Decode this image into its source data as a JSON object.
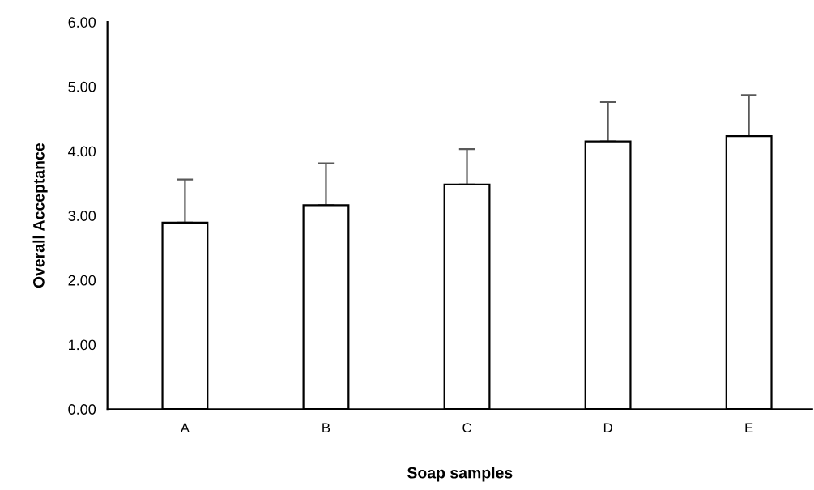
{
  "chart_data": {
    "type": "bar",
    "xlabel": "Soap samples",
    "ylabel": "Overall Acceptance",
    "categories": [
      "A",
      "B",
      "C",
      "D",
      "E"
    ],
    "series": [
      {
        "color": "#ffffff",
        "values": [
          2.89,
          3.16,
          3.48,
          4.15,
          4.23
        ],
        "errors": [
          [
            2.89,
            3.56
          ],
          [
            3.16,
            3.81
          ],
          [
            3.48,
            4.03
          ],
          [
            4.15,
            4.76
          ],
          [
            4.23,
            4.87
          ]
        ]
      }
    ],
    "ylim": [
      0,
      6
    ],
    "yticks": [
      {
        "value": 0,
        "label": "0.00"
      },
      {
        "value": 1,
        "label": "1.00"
      },
      {
        "value": 2,
        "label": "2.00"
      },
      {
        "value": 3,
        "label": "3.00"
      },
      {
        "value": 4,
        "label": "4.00"
      },
      {
        "value": 5,
        "label": "5.00"
      },
      {
        "value": 6,
        "label": "6.00"
      }
    ],
    "grid": false
  }
}
